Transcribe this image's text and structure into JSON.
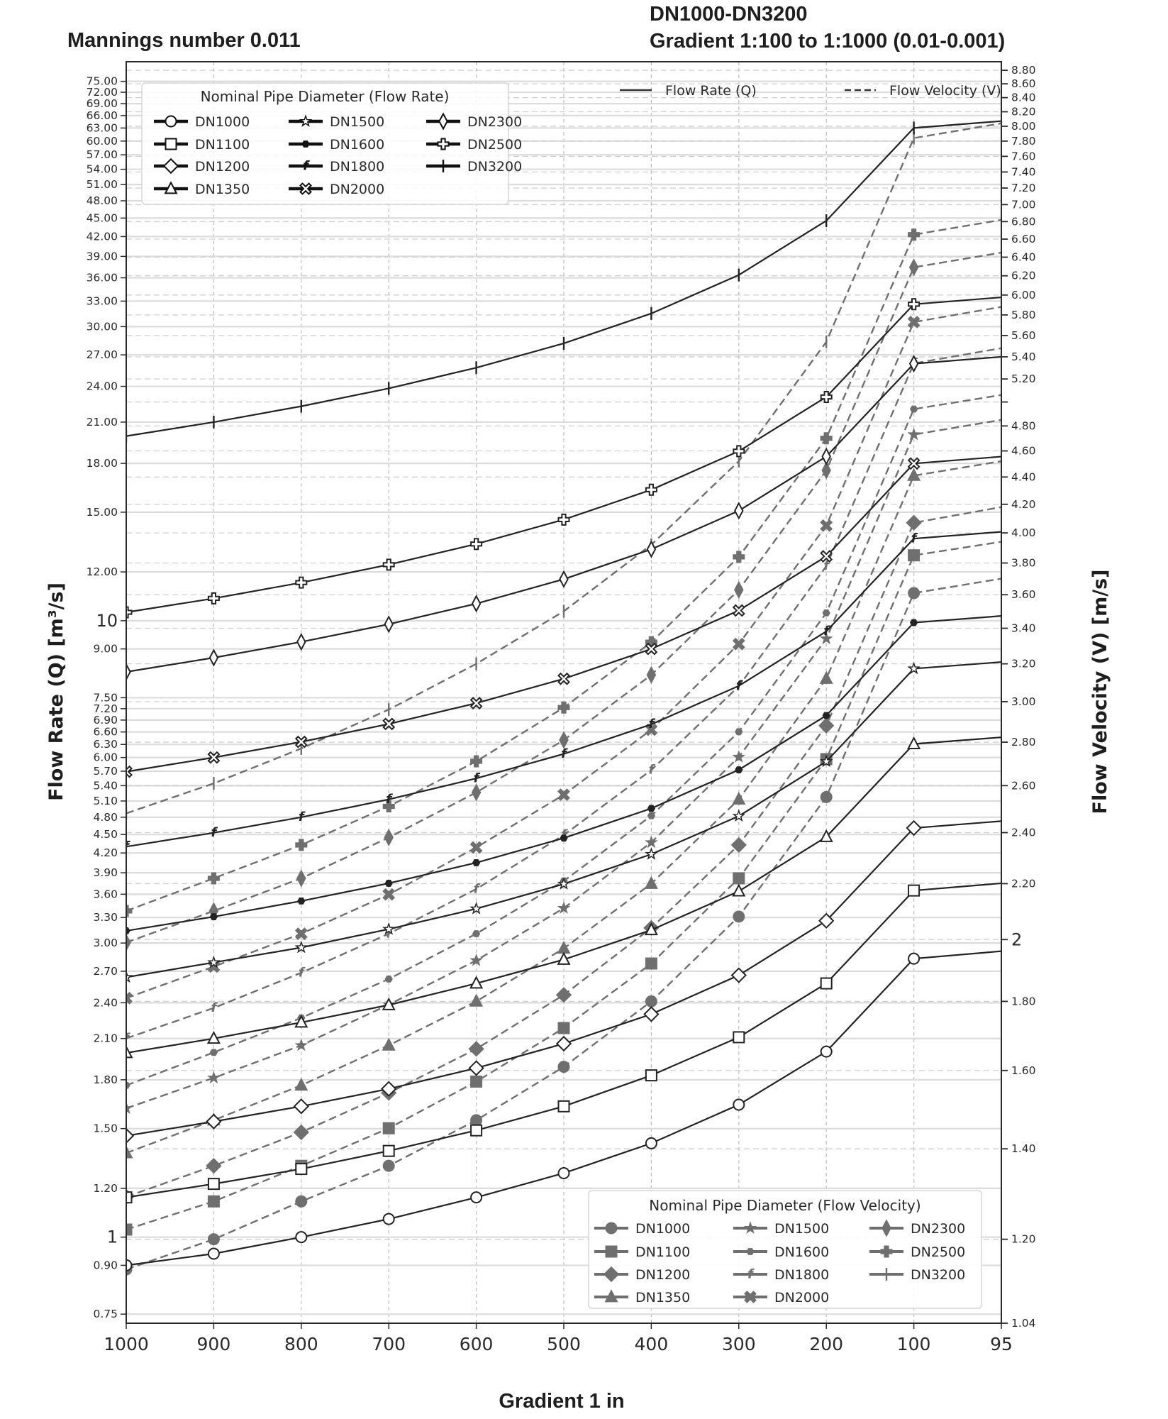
{
  "header": {
    "left_title": "Mannings number 0.011",
    "right_title_line1": "DN1000-DN3200",
    "right_title_line2": "Gradient 1:100 to 1:1000 (0.01-0.001)"
  },
  "chart_data": {
    "type": "line",
    "xlabel": "Gradient 1 in",
    "ylabel": "Flow Rate (Q) [m³/s]",
    "y2label": "Flow Velocity (V) [m/s]",
    "categories": [
      "1000",
      "900",
      "800",
      "700",
      "600",
      "500",
      "400",
      "300",
      "200",
      "100",
      "95"
    ],
    "y_scale": "log",
    "y2_scale": "log",
    "ylim": [
      0.725,
      80.7
    ],
    "y2lim": [
      1.04,
      8.93
    ],
    "grid": true,
    "y_ticks": [
      0.75,
      0.9,
      1,
      1.2,
      1.5,
      1.8,
      2.1,
      2.4,
      2.7,
      3.0,
      3.3,
      3.6,
      3.9,
      4.2,
      4.5,
      4.8,
      5.1,
      5.4,
      5.7,
      6.0,
      6.3,
      6.6,
      6.9,
      7.2,
      7.5,
      9.0,
      10,
      12,
      15,
      18,
      21,
      24,
      27,
      30,
      33,
      36,
      39,
      42,
      45,
      48,
      51,
      54,
      57,
      60,
      63,
      66,
      69,
      72,
      75
    ],
    "y_tick_labels": [
      "0.75",
      "0.90",
      "1",
      "1.20",
      "1.50",
      "1.80",
      "2.10",
      "2.40",
      "2.70",
      "3.00",
      "3.30",
      "3.60",
      "3.90",
      "4.20",
      "4.50",
      "4.80",
      "5.10",
      "5.40",
      "5.70",
      "6.00",
      "6.30",
      "6.60",
      "6.90",
      "7.20",
      "7.50",
      "9.00",
      "10",
      "12.00",
      "15.00",
      "18.00",
      "21.00",
      "24.00",
      "27.00",
      "30.00",
      "33.00",
      "36.00",
      "39.00",
      "42.00",
      "45.00",
      "48.00",
      "51.00",
      "54.00",
      "57.00",
      "60.00",
      "63.00",
      "66.00",
      "69.00",
      "72.00",
      "75.00"
    ],
    "y2_ticks": [
      1.04,
      1.2,
      1.4,
      1.6,
      1.8,
      2,
      2.2,
      2.4,
      2.6,
      2.8,
      3.0,
      3.2,
      3.4,
      3.6,
      3.8,
      4.0,
      4.2,
      4.4,
      4.6,
      4.8,
      5.0,
      5.2,
      5.4,
      5.6,
      5.8,
      6.0,
      6.2,
      6.4,
      6.6,
      6.8,
      7.0,
      7.2,
      7.4,
      7.6,
      7.8,
      8.0,
      8.2,
      8.4,
      8.6,
      8.8
    ],
    "y2_tick_labels": [
      "1.04",
      "1.20",
      "1.40",
      "1.60",
      "1.80",
      "2",
      "2.20",
      "2.40",
      "2.60",
      "2.80",
      "3.00",
      "3.20",
      "3.40",
      "3.60",
      "3.80",
      "4.00",
      "4.20",
      "4.40",
      "4.60",
      "4.80",
      "",
      "5.20",
      "5.40",
      "5.60",
      "5.80",
      "6.00",
      "6.20",
      "6.40",
      "6.60",
      "6.80",
      "7.00",
      "7.20",
      "7.40",
      "7.60",
      "7.80",
      "8.00",
      "8.20",
      "8.40",
      "8.60",
      "8.80"
    ],
    "colors": {
      "flow_rate": "#232323",
      "flow_velocity": "#6f6f6f",
      "grid": "#cfcfcf"
    },
    "style_legend": [
      {
        "label": "Flow Rate (Q)",
        "line": "solid"
      },
      {
        "label": "Flow Velocity (V)",
        "line": "dashed"
      }
    ],
    "flow_rate_legend_title": "Nominal Pipe Diameter (Flow Rate)",
    "flow_velocity_legend_title": "Nominal Pipe Diameter (Flow Velocity)",
    "flow_rate_series": [
      {
        "name": "DN1000",
        "marker": "circle",
        "values": [
          0.9,
          0.94,
          1.0,
          1.07,
          1.16,
          1.27,
          1.42,
          1.64,
          2.0,
          2.83,
          2.91
        ]
      },
      {
        "name": "DN1100",
        "marker": "square",
        "values": [
          1.16,
          1.22,
          1.29,
          1.38,
          1.49,
          1.63,
          1.83,
          2.11,
          2.58,
          3.65,
          3.75
        ]
      },
      {
        "name": "DN1200",
        "marker": "diamond",
        "values": [
          1.46,
          1.54,
          1.63,
          1.74,
          1.88,
          2.06,
          2.3,
          2.66,
          3.26,
          4.61,
          4.73
        ]
      },
      {
        "name": "DN1350",
        "marker": "triangle",
        "values": [
          1.99,
          2.1,
          2.23,
          2.38,
          2.58,
          2.82,
          3.15,
          3.64,
          4.46,
          6.31,
          6.47
        ]
      },
      {
        "name": "DN1500",
        "marker": "star",
        "values": [
          2.64,
          2.79,
          2.95,
          3.16,
          3.41,
          3.74,
          4.18,
          4.82,
          5.91,
          8.36,
          8.57
        ]
      },
      {
        "name": "DN1600",
        "marker": "hexagon",
        "values": [
          3.14,
          3.31,
          3.51,
          3.75,
          4.05,
          4.44,
          4.96,
          5.73,
          7.02,
          9.93,
          10.18
        ]
      },
      {
        "name": "DN1800",
        "marker": "f-glyph",
        "values": [
          4.3,
          4.53,
          4.8,
          5.13,
          5.55,
          6.08,
          6.79,
          7.84,
          9.61,
          13.59,
          13.94
        ]
      },
      {
        "name": "DN2000",
        "marker": "x-filled",
        "values": [
          5.69,
          6.0,
          6.36,
          6.8,
          7.35,
          8.05,
          9.0,
          10.39,
          12.72,
          17.99,
          18.46
        ]
      },
      {
        "name": "DN2300",
        "marker": "thin-diamond",
        "values": [
          8.26,
          8.71,
          9.24,
          9.87,
          10.66,
          11.68,
          13.06,
          15.08,
          18.47,
          26.12,
          26.8
        ]
      },
      {
        "name": "DN2500",
        "marker": "plus-filled",
        "values": [
          10.32,
          10.87,
          11.53,
          12.33,
          13.32,
          14.59,
          16.31,
          18.84,
          23.07,
          32.62,
          33.47
        ]
      },
      {
        "name": "DN3200",
        "marker": "vline",
        "values": [
          19.93,
          21.0,
          22.28,
          23.82,
          25.73,
          28.18,
          31.51,
          36.38,
          44.56,
          63.01,
          64.65
        ]
      }
    ],
    "flow_velocity_series": [
      {
        "name": "DN1000",
        "marker": "circle",
        "values": [
          1.14,
          1.2,
          1.28,
          1.36,
          1.47,
          1.61,
          1.8,
          2.08,
          2.55,
          3.61,
          3.7
        ]
      },
      {
        "name": "DN1100",
        "marker": "square",
        "values": [
          1.22,
          1.28,
          1.36,
          1.45,
          1.57,
          1.72,
          1.92,
          2.22,
          2.72,
          3.85,
          3.94
        ]
      },
      {
        "name": "DN1200",
        "marker": "diamond",
        "values": [
          1.29,
          1.36,
          1.44,
          1.54,
          1.66,
          1.82,
          2.04,
          2.35,
          2.88,
          4.07,
          4.18
        ]
      },
      {
        "name": "DN1350",
        "marker": "triangle",
        "values": [
          1.39,
          1.47,
          1.56,
          1.67,
          1.8,
          1.97,
          2.2,
          2.54,
          3.12,
          4.41,
          4.52
        ]
      },
      {
        "name": "DN1500",
        "marker": "star",
        "values": [
          1.5,
          1.58,
          1.67,
          1.79,
          1.93,
          2.11,
          2.36,
          2.73,
          3.34,
          4.73,
          4.85
        ]
      },
      {
        "name": "DN1600",
        "marker": "hexagon",
        "values": [
          1.56,
          1.65,
          1.75,
          1.87,
          2.02,
          2.21,
          2.47,
          2.85,
          3.49,
          4.94,
          5.06
        ]
      },
      {
        "name": "DN1800",
        "marker": "f-glyph",
        "values": [
          1.69,
          1.78,
          1.89,
          2.02,
          2.18,
          2.39,
          2.67,
          3.08,
          3.78,
          5.34,
          5.48
        ]
      },
      {
        "name": "DN2000",
        "marker": "x-filled",
        "values": [
          1.81,
          1.91,
          2.02,
          2.16,
          2.34,
          2.56,
          2.86,
          3.31,
          4.05,
          5.73,
          5.88
        ]
      },
      {
        "name": "DN2300",
        "marker": "thin-diamond",
        "values": [
          1.99,
          2.1,
          2.22,
          2.38,
          2.57,
          2.81,
          3.14,
          3.63,
          4.45,
          6.29,
          6.45
        ]
      },
      {
        "name": "DN2500",
        "marker": "plus-filled",
        "values": [
          2.1,
          2.22,
          2.35,
          2.51,
          2.71,
          2.97,
          3.32,
          3.84,
          4.7,
          6.65,
          6.82
        ]
      },
      {
        "name": "DN3200",
        "marker": "vline",
        "values": [
          2.48,
          2.61,
          2.77,
          2.96,
          3.2,
          3.5,
          3.92,
          4.52,
          5.54,
          7.84,
          8.04
        ]
      }
    ]
  }
}
